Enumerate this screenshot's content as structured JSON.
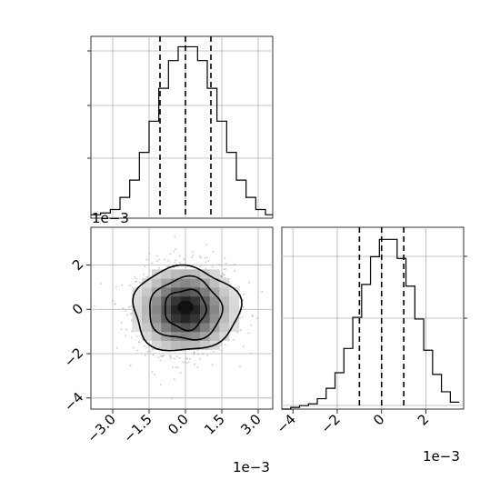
{
  "chart_data": [
    {
      "type": "histogram",
      "panel": "top-left marginal",
      "xlim": [
        -0.0039,
        0.0036
      ],
      "y_range": [
        0,
        1.0
      ],
      "bins": [
        -0.0039,
        -0.0035,
        -0.0031,
        -0.0027,
        -0.0023,
        -0.0019,
        -0.0015,
        -0.0011,
        -0.0007,
        -0.0003,
        0.0001,
        0.0005,
        0.0009,
        0.0013,
        0.0017,
        0.0021,
        0.0025,
        0.0029,
        0.0033,
        0.0036
      ],
      "counts": [
        0.02,
        0.03,
        0.05,
        0.12,
        0.22,
        0.38,
        0.56,
        0.75,
        0.91,
        0.99,
        0.99,
        0.91,
        0.75,
        0.56,
        0.38,
        0.22,
        0.12,
        0.05,
        0.02
      ],
      "quantile_lines": [
        -0.00105,
        0.0,
        0.00105
      ],
      "grid": true
    },
    {
      "type": "histogram",
      "panel": "bottom-right marginal",
      "xlim": [
        -0.0045,
        0.0037
      ],
      "y_range": [
        0,
        1.0
      ],
      "bins": [
        -0.0045,
        -0.0041,
        -0.0037,
        -0.0033,
        -0.0029,
        -0.0025,
        -0.0021,
        -0.0017,
        -0.0013,
        -0.0009,
        -0.0005,
        -0.0001,
        0.0003,
        0.0007,
        0.0011,
        0.0015,
        0.0019,
        0.0023,
        0.0027,
        0.0031,
        0.0035
      ],
      "counts": [
        0.0,
        0.01,
        0.02,
        0.03,
        0.06,
        0.12,
        0.21,
        0.35,
        0.53,
        0.72,
        0.88,
        0.98,
        0.98,
        0.87,
        0.71,
        0.52,
        0.34,
        0.2,
        0.1,
        0.04
      ],
      "quantile_lines": [
        -0.001,
        0.0,
        0.001
      ],
      "xticks": [
        {
          "value": -0.004,
          "label": "−4"
        },
        {
          "value": -0.002,
          "label": "−2"
        },
        {
          "value": 0.0,
          "label": "0"
        },
        {
          "value": 0.002,
          "label": "2"
        }
      ],
      "offset_label": "1e−3",
      "grid": true
    },
    {
      "type": "heatmap",
      "panel": "bottom-left 2D density with contours",
      "xlim": [
        -0.0039,
        0.0036
      ],
      "ylim": [
        -0.0045,
        0.0037
      ],
      "contour_levels": [
        {
          "level": 0.39,
          "scale": 1.0,
          "rx": 0.0022,
          "ry": 0.0019
        },
        {
          "level": 0.86,
          "scale": 1.0,
          "rx": 0.0015,
          "ry": 0.0014
        },
        {
          "level": 0.99,
          "scale": 1.0,
          "rx": 0.00085,
          "ry": 0.0009
        }
      ],
      "center": [
        0.0,
        0.0
      ],
      "xticks": [
        {
          "value": -0.003,
          "label": "−3.0"
        },
        {
          "value": -0.0015,
          "label": "−1.5"
        },
        {
          "value": 0.0,
          "label": "0.0"
        },
        {
          "value": 0.0015,
          "label": "1.5"
        },
        {
          "value": 0.003,
          "label": "3.0"
        }
      ],
      "yticks": [
        {
          "value": -0.004,
          "label": "−4"
        },
        {
          "value": -0.002,
          "label": "−2"
        },
        {
          "value": 0.0,
          "label": "0"
        },
        {
          "value": 0.002,
          "label": "2"
        }
      ],
      "x_offset_label": "1e−3",
      "y_offset_label": "1e−3",
      "grid": true
    }
  ]
}
